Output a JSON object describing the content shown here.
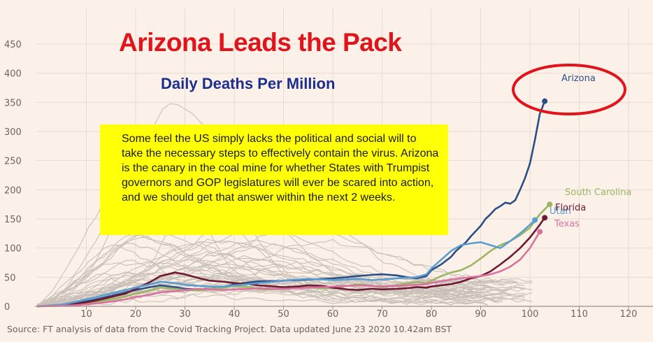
{
  "title": "Arizona Leads the Pack",
  "subtitle": "Daily Deaths Per Million",
  "callout": "Some feel the US simply lacks the political and social will to take the necessary steps to effectively contain the virus. Arizona is the canary in the coal mine for whether States with Trumpist governors and GOP legislatures will ever be scared into action, and we should get that answer within the next 2 weeks.",
  "source": "Source: FT analysis of data from the Covid Tracking Project. Data updated June 23 2020 10.42am BST",
  "colors": {
    "background": "#fbf1e8",
    "grid": "#e6dbd1",
    "axis": "#9a918b",
    "other_states": "#c9c0b8",
    "highlight_ring": "#e0141a",
    "title": "#e0141a",
    "subtitle": "#1c2f8c",
    "callout_bg": "#ffff06"
  },
  "chart_data": {
    "type": "line",
    "title": "Daily Deaths Per Million",
    "xlabel": "",
    "ylabel": "",
    "xlim": [
      0,
      122
    ],
    "ylim": [
      0,
      450
    ],
    "xticks": [
      10,
      20,
      30,
      40,
      50,
      60,
      70,
      80,
      90,
      100,
      110,
      120
    ],
    "yticks": [
      0,
      50,
      100,
      150,
      200,
      250,
      300,
      350,
      400,
      450
    ],
    "grid": true,
    "series": [
      {
        "name": "Arizona",
        "color": "#2b4f85",
        "labeled": true,
        "x": [
          0,
          5,
          8,
          12,
          15,
          18,
          20,
          23,
          25,
          28,
          30,
          33,
          35,
          38,
          40,
          43,
          45,
          48,
          50,
          53,
          55,
          58,
          60,
          63,
          65,
          68,
          70,
          73,
          75,
          77,
          79,
          80,
          82,
          84,
          85,
          87,
          88,
          90,
          91,
          92,
          93,
          94,
          95,
          96,
          97,
          98,
          99,
          100,
          101,
          102,
          103
        ],
        "y": [
          0,
          2,
          5,
          12,
          18,
          24,
          28,
          33,
          36,
          33,
          30,
          29,
          30,
          33,
          38,
          41,
          43,
          43,
          44,
          45,
          46,
          47,
          48,
          50,
          52,
          54,
          55,
          53,
          50,
          48,
          52,
          62,
          72,
          85,
          95,
          110,
          120,
          138,
          150,
          158,
          167,
          172,
          178,
          176,
          182,
          200,
          220,
          245,
          285,
          330,
          352
        ]
      },
      {
        "name": "South Carolina",
        "color": "#9cb563",
        "labeled": true,
        "x": [
          0,
          5,
          8,
          12,
          15,
          18,
          20,
          23,
          25,
          28,
          30,
          33,
          35,
          38,
          40,
          43,
          45,
          48,
          50,
          53,
          55,
          58,
          60,
          63,
          65,
          68,
          70,
          73,
          75,
          77,
          79,
          80,
          82,
          84,
          86,
          88,
          90,
          92,
          94,
          96,
          98,
          100,
          102,
          104
        ],
        "y": [
          0,
          1,
          3,
          8,
          12,
          17,
          22,
          28,
          32,
          30,
          28,
          27,
          30,
          32,
          35,
          33,
          30,
          29,
          31,
          34,
          33,
          31,
          32,
          35,
          38,
          35,
          33,
          36,
          39,
          42,
          40,
          44,
          52,
          58,
          62,
          70,
          82,
          95,
          105,
          112,
          122,
          135,
          158,
          175
        ]
      },
      {
        "name": "Florida",
        "color": "#6e1a33",
        "labeled": true,
        "x": [
          0,
          5,
          8,
          12,
          15,
          18,
          20,
          23,
          25,
          28,
          30,
          33,
          35,
          38,
          40,
          43,
          45,
          48,
          50,
          53,
          55,
          58,
          60,
          63,
          65,
          68,
          70,
          73,
          75,
          77,
          79,
          80,
          82,
          84,
          86,
          88,
          90,
          92,
          94,
          96,
          98,
          100,
          102,
          103
        ],
        "y": [
          0,
          2,
          4,
          10,
          16,
          22,
          30,
          42,
          52,
          58,
          55,
          48,
          44,
          42,
          40,
          38,
          36,
          34,
          33,
          34,
          36,
          35,
          32,
          29,
          28,
          30,
          29,
          30,
          31,
          33,
          32,
          34,
          36,
          38,
          42,
          48,
          52,
          60,
          72,
          85,
          100,
          118,
          140,
          152
        ]
      },
      {
        "name": "Utah",
        "color": "#5b9dd0",
        "labeled": true,
        "x": [
          0,
          5,
          8,
          12,
          15,
          18,
          20,
          23,
          25,
          28,
          30,
          33,
          35,
          38,
          40,
          43,
          45,
          48,
          50,
          53,
          55,
          58,
          60,
          63,
          65,
          68,
          70,
          73,
          75,
          77,
          79,
          80,
          82,
          84,
          86,
          88,
          90,
          92,
          94,
          96,
          98,
          100,
          101
        ],
        "y": [
          0,
          3,
          8,
          16,
          22,
          28,
          32,
          38,
          42,
          40,
          37,
          35,
          34,
          34,
          36,
          38,
          40,
          42,
          44,
          46,
          47,
          46,
          45,
          46,
          47,
          45,
          46,
          48,
          49,
          50,
          55,
          65,
          80,
          95,
          105,
          108,
          110,
          105,
          100,
          112,
          125,
          140,
          148
        ]
      },
      {
        "name": "Texas",
        "color": "#d9729f",
        "labeled": true,
        "x": [
          0,
          5,
          8,
          12,
          15,
          18,
          20,
          23,
          25,
          28,
          30,
          33,
          35,
          38,
          40,
          43,
          45,
          48,
          50,
          53,
          55,
          58,
          60,
          63,
          65,
          68,
          70,
          73,
          75,
          77,
          79,
          80,
          82,
          84,
          86,
          88,
          90,
          92,
          94,
          96,
          98,
          100,
          102
        ],
        "y": [
          0,
          1,
          2,
          5,
          8,
          12,
          16,
          20,
          24,
          26,
          28,
          30,
          29,
          28,
          29,
          30,
          31,
          30,
          30,
          31,
          32,
          33,
          34,
          35,
          36,
          35,
          34,
          35,
          36,
          37,
          38,
          40,
          43,
          46,
          48,
          50,
          52,
          55,
          60,
          68,
          80,
          100,
          128
        ]
      }
    ]
  },
  "labels": {
    "arizona": "Arizona",
    "south_carolina": "South Carolina",
    "florida": "Florida",
    "utah": "Utah",
    "texas": "Texas"
  }
}
